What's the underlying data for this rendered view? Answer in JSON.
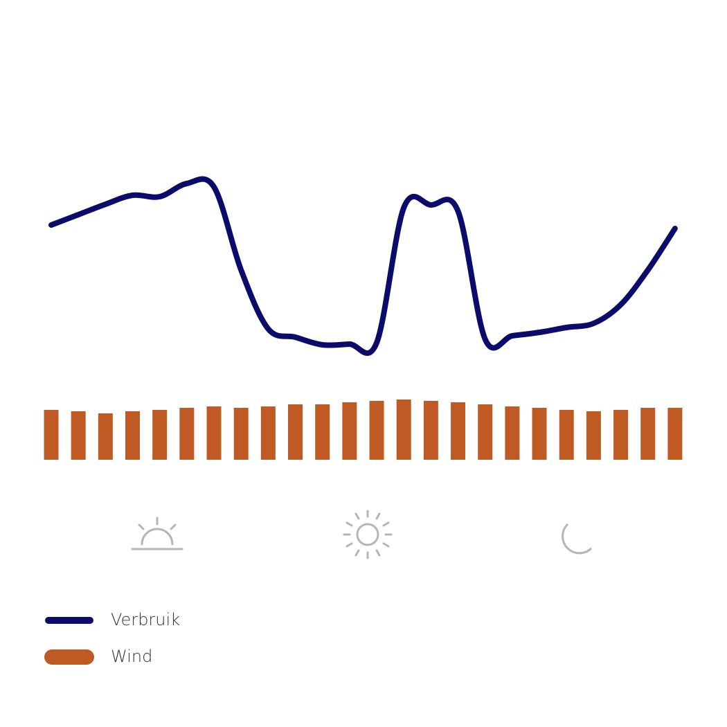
{
  "chart_data": {
    "type": "combo",
    "series": [
      {
        "name": "Verbruik",
        "type": "line",
        "color": "#0b0b6b",
        "values": [
          275,
          290,
          305,
          318,
          316,
          335,
          330,
          210,
          125,
          113,
          102,
          103,
          105,
          300,
          304,
          295,
          110,
          115,
          120,
          127,
          133,
          160,
          210,
          270
        ]
      },
      {
        "name": "Wind",
        "type": "bar",
        "color": "#c05a25",
        "values": [
          72,
          70,
          67,
          70,
          72,
          75,
          77,
          75,
          77,
          80,
          80,
          83,
          85,
          87,
          85,
          83,
          80,
          77,
          75,
          72,
          70,
          72,
          75,
          75
        ]
      }
    ]
  }
}
